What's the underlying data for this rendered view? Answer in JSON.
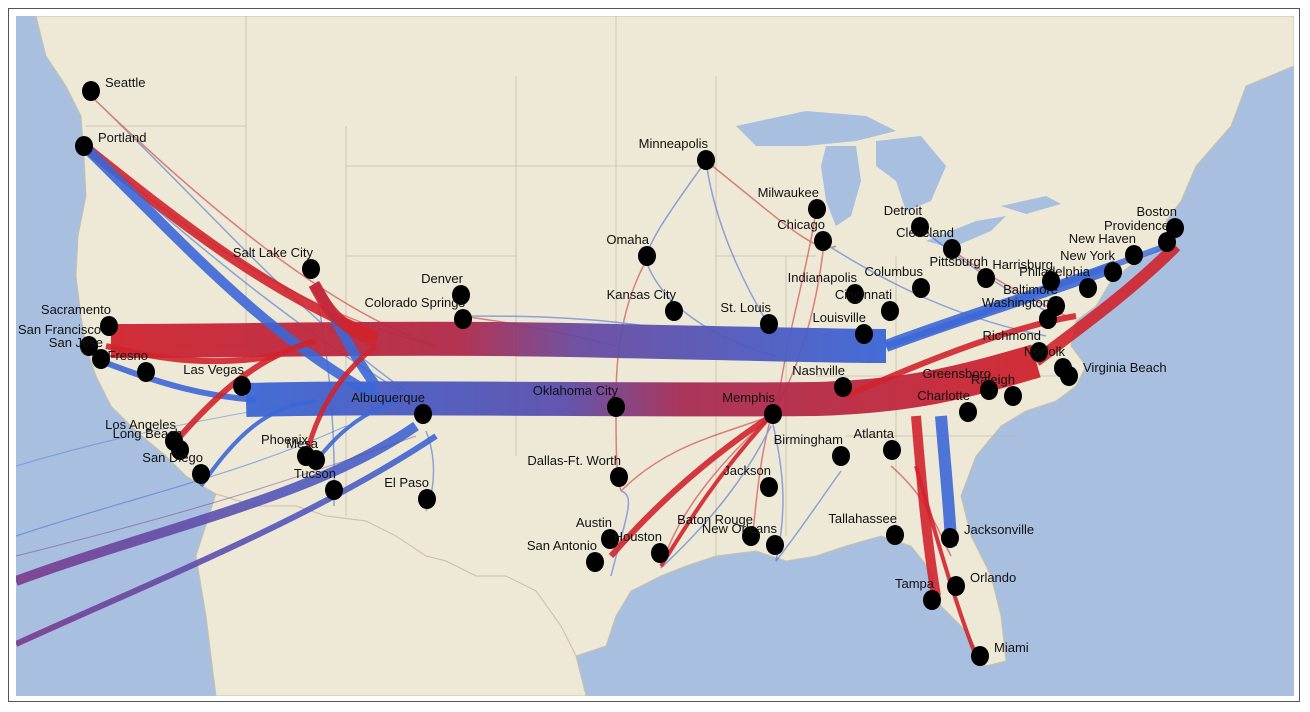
{
  "map": {
    "colors": {
      "ocean": "#a8bfe0",
      "land": "#ede9d6",
      "water_inland": "#a8bfe0",
      "flow_red": "#d0242e",
      "flow_blue": "#3b67d6",
      "flow_mid": "#7a3a8c",
      "city_dot": "#000000",
      "label": "#111111"
    },
    "cities": [
      {
        "name": "Seattle"
      },
      {
        "name": "Portland"
      },
      {
        "name": "Sacramento"
      },
      {
        "name": "San Francisco"
      },
      {
        "name": "San Jose"
      },
      {
        "name": "Fresno"
      },
      {
        "name": "Las Vegas"
      },
      {
        "name": "Los Angeles"
      },
      {
        "name": "Long Beach"
      },
      {
        "name": "San Diego"
      },
      {
        "name": "Phoenix"
      },
      {
        "name": "Mesa"
      },
      {
        "name": "Tucson"
      },
      {
        "name": "Salt Lake City"
      },
      {
        "name": "Denver"
      },
      {
        "name": "Colorado Springs"
      },
      {
        "name": "Albuquerque"
      },
      {
        "name": "El Paso"
      },
      {
        "name": "Omaha"
      },
      {
        "name": "Minneapolis"
      },
      {
        "name": "Kansas City"
      },
      {
        "name": "Oklahoma City"
      },
      {
        "name": "Dallas-Ft. Worth"
      },
      {
        "name": "Austin"
      },
      {
        "name": "San Antonio"
      },
      {
        "name": "Houston"
      },
      {
        "name": "Milwaukee"
      },
      {
        "name": "Chicago"
      },
      {
        "name": "St. Louis"
      },
      {
        "name": "Memphis"
      },
      {
        "name": "Jackson"
      },
      {
        "name": "Baton Rouge"
      },
      {
        "name": "New Orleans"
      },
      {
        "name": "Nashville"
      },
      {
        "name": "Louisville"
      },
      {
        "name": "Indianapolis"
      },
      {
        "name": "Cincinnati"
      },
      {
        "name": "Columbus"
      },
      {
        "name": "Detroit"
      },
      {
        "name": "Cleveland"
      },
      {
        "name": "Pittsburgh"
      },
      {
        "name": "Birmingham"
      },
      {
        "name": "Atlanta"
      },
      {
        "name": "Tallahassee"
      },
      {
        "name": "Jacksonville"
      },
      {
        "name": "Orlando"
      },
      {
        "name": "Tampa"
      },
      {
        "name": "Miami"
      },
      {
        "name": "Charlotte"
      },
      {
        "name": "Greensboro"
      },
      {
        "name": "Raleigh"
      },
      {
        "name": "Richmond"
      },
      {
        "name": "Norfolk"
      },
      {
        "name": "Virginia Beach"
      },
      {
        "name": "Washington"
      },
      {
        "name": "Baltimore"
      },
      {
        "name": "Philadelphia"
      },
      {
        "name": "Harrisburg"
      },
      {
        "name": "New York"
      },
      {
        "name": "New Haven"
      },
      {
        "name": "Providence"
      },
      {
        "name": "Boston"
      }
    ]
  }
}
